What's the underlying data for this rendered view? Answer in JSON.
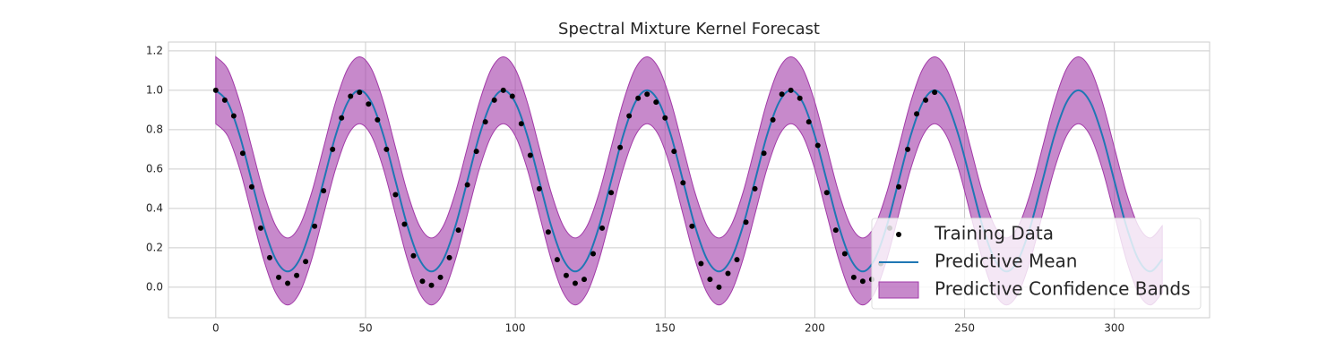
{
  "chart_data": {
    "type": "line",
    "title": "Spectral Mixture Kernel Forecast",
    "xlim": [
      -15.8,
      331.8
    ],
    "ylim": [
      -0.155,
      1.245
    ],
    "xticks": [
      0,
      50,
      100,
      150,
      200,
      250,
      300
    ],
    "yticks": [
      {
        "value": 0,
        "label": "0.0"
      },
      0.2,
      0.4,
      0.6,
      0.8,
      {
        "value": 1,
        "label": "1.0"
      },
      1.2
    ],
    "grid": true,
    "legend": "lower right",
    "series": [
      {
        "name": "Training Data",
        "kind": "scatter",
        "color": "#000000",
        "x": [
          0,
          3,
          6,
          9,
          12,
          15,
          18,
          21,
          24,
          27,
          30,
          33,
          36,
          39,
          42,
          45,
          48,
          51,
          54,
          57,
          60,
          63,
          66,
          69,
          72,
          75,
          78,
          81,
          84,
          87,
          90,
          93,
          96,
          99,
          102,
          105,
          108,
          111,
          114,
          117,
          120,
          123,
          126,
          129,
          132,
          135,
          138,
          141,
          144,
          147,
          150,
          153,
          156,
          159,
          162,
          165,
          168,
          171,
          174,
          177,
          180,
          183,
          186,
          189,
          192,
          195,
          198,
          201,
          204,
          207,
          210,
          213,
          216,
          219,
          222,
          225,
          228,
          231,
          234,
          237,
          240
        ],
        "values": [
          1.0,
          0.95,
          0.87,
          0.68,
          0.51,
          0.3,
          0.15,
          0.05,
          0.02,
          0.06,
          0.13,
          0.31,
          0.49,
          0.7,
          0.86,
          0.97,
          0.99,
          0.93,
          0.85,
          0.7,
          0.47,
          0.32,
          0.16,
          0.03,
          0.01,
          0.05,
          0.15,
          0.29,
          0.52,
          0.69,
          0.84,
          0.95,
          1.0,
          0.97,
          0.83,
          0.67,
          0.5,
          0.28,
          0.14,
          0.06,
          0.02,
          0.04,
          0.17,
          0.3,
          0.48,
          0.71,
          0.87,
          0.96,
          0.98,
          0.94,
          0.86,
          0.69,
          0.53,
          0.31,
          0.12,
          0.04,
          0.0,
          0.07,
          0.14,
          0.33,
          0.5,
          0.68,
          0.85,
          0.98,
          1.0,
          0.96,
          0.84,
          0.72,
          0.48,
          0.29,
          0.17,
          0.05,
          0.03,
          0.04,
          0.12,
          0.3,
          0.51,
          0.7,
          0.88,
          0.95,
          0.99
        ]
      },
      {
        "name": "Predictive Mean",
        "kind": "line",
        "color": "#1f77b4",
        "x": [
          0,
          4,
          8,
          12,
          16,
          20,
          24,
          28,
          32,
          36,
          40,
          44,
          48,
          52,
          56,
          60,
          64,
          68,
          72,
          76,
          80,
          84,
          88,
          92,
          96,
          100,
          104,
          108,
          112,
          116,
          120,
          124,
          128,
          132,
          136,
          140,
          144,
          148,
          152,
          156,
          160,
          164,
          168,
          172,
          176,
          180,
          184,
          188,
          192,
          196,
          200,
          204,
          208,
          212,
          216,
          220,
          224,
          228,
          232,
          236,
          240,
          244,
          248,
          252,
          256,
          260,
          264,
          268,
          272,
          276,
          280,
          284,
          288,
          292,
          296,
          300,
          304,
          308,
          312,
          316
        ],
        "values": [
          1.0,
          0.938,
          0.77,
          0.54,
          0.31,
          0.142,
          0.08,
          0.142,
          0.31,
          0.54,
          0.77,
          0.938,
          1.0,
          0.938,
          0.77,
          0.54,
          0.31,
          0.142,
          0.08,
          0.142,
          0.31,
          0.54,
          0.77,
          0.938,
          1.0,
          0.938,
          0.77,
          0.54,
          0.31,
          0.142,
          0.08,
          0.142,
          0.31,
          0.54,
          0.77,
          0.938,
          1.0,
          0.938,
          0.77,
          0.54,
          0.31,
          0.142,
          0.08,
          0.142,
          0.31,
          0.54,
          0.77,
          0.938,
          1.0,
          0.938,
          0.77,
          0.54,
          0.31,
          0.142,
          0.08,
          0.142,
          0.31,
          0.54,
          0.77,
          0.938,
          1.0,
          0.938,
          0.77,
          0.54,
          0.31,
          0.142,
          0.08,
          0.142,
          0.31,
          0.54,
          0.77,
          0.938,
          1.0,
          0.938,
          0.77,
          0.54,
          0.31,
          0.142,
          0.08,
          0.142
        ]
      },
      {
        "name": "Predictive Confidence Bands",
        "kind": "band",
        "color": "#a23aa8",
        "x": [
          0,
          4,
          8,
          12,
          16,
          20,
          24,
          28,
          32,
          36,
          40,
          44,
          48,
          52,
          56,
          60,
          64,
          68,
          72,
          76,
          80,
          84,
          88,
          92,
          96,
          100,
          104,
          108,
          112,
          116,
          120,
          124,
          128,
          132,
          136,
          140,
          144,
          148,
          152,
          156,
          160,
          164,
          168,
          172,
          176,
          180,
          184,
          188,
          192,
          196,
          200,
          204,
          208,
          212,
          216,
          220,
          224,
          228,
          232,
          236,
          240,
          244,
          248,
          252,
          256,
          260,
          264,
          268,
          272,
          276,
          280,
          284,
          288,
          292,
          296,
          300,
          304,
          308,
          312,
          316
        ],
        "upper": [
          1.17,
          1.108,
          0.94,
          0.71,
          0.48,
          0.312,
          0.25,
          0.312,
          0.48,
          0.71,
          0.94,
          1.108,
          1.17,
          1.108,
          0.94,
          0.71,
          0.48,
          0.312,
          0.25,
          0.312,
          0.48,
          0.71,
          0.94,
          1.108,
          1.17,
          1.108,
          0.94,
          0.71,
          0.48,
          0.312,
          0.25,
          0.312,
          0.48,
          0.71,
          0.94,
          1.108,
          1.17,
          1.108,
          0.94,
          0.71,
          0.48,
          0.312,
          0.25,
          0.312,
          0.48,
          0.71,
          0.94,
          1.108,
          1.17,
          1.108,
          0.94,
          0.71,
          0.48,
          0.312,
          0.25,
          0.312,
          0.48,
          0.71,
          0.94,
          1.108,
          1.17,
          1.108,
          0.94,
          0.71,
          0.48,
          0.312,
          0.25,
          0.312,
          0.48,
          0.71,
          0.94,
          1.108,
          1.17,
          1.108,
          0.94,
          0.71,
          0.48,
          0.312,
          0.25,
          0.312
        ],
        "lower": [
          0.83,
          0.768,
          0.6,
          0.37,
          0.14,
          -0.028,
          -0.09,
          -0.028,
          0.14,
          0.37,
          0.6,
          0.768,
          0.83,
          0.768,
          0.6,
          0.37,
          0.14,
          -0.028,
          -0.09,
          -0.028,
          0.14,
          0.37,
          0.6,
          0.768,
          0.83,
          0.768,
          0.6,
          0.37,
          0.14,
          -0.028,
          -0.09,
          -0.028,
          0.14,
          0.37,
          0.6,
          0.768,
          0.83,
          0.768,
          0.6,
          0.37,
          0.14,
          -0.028,
          -0.09,
          -0.028,
          0.14,
          0.37,
          0.6,
          0.768,
          0.83,
          0.768,
          0.6,
          0.37,
          0.14,
          -0.028,
          -0.09,
          -0.028,
          0.14,
          0.37,
          0.6,
          0.768,
          0.83,
          0.768,
          0.6,
          0.37,
          0.14,
          -0.028,
          -0.09,
          -0.028,
          0.14,
          0.37,
          0.6,
          0.768,
          0.83,
          0.768,
          0.6,
          0.37,
          0.14,
          -0.028,
          -0.09,
          -0.028
        ]
      }
    ]
  }
}
